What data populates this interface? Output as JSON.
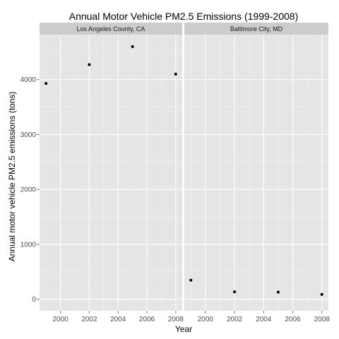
{
  "chart_data": {
    "type": "scatter",
    "title": "Annual Motor Vehicle PM2.5 Emissions (1999-2008)",
    "xlabel": "Year",
    "ylabel": "Annual motor vehicle PM2.5 emissions (tons)",
    "xlim": [
      1998.55,
      2008.45
    ],
    "ylim": [
      -210,
      4820
    ],
    "xticks": [
      2000,
      2002,
      2004,
      2006,
      2008
    ],
    "yticks": [
      0,
      1000,
      2000,
      3000,
      4000
    ],
    "grid": true,
    "legend": "none",
    "point_color": "#000000",
    "panel_background": "#e5e5e5",
    "strip_background": "#cccccc",
    "facets": [
      {
        "label": "Los Angeles County, CA",
        "points": [
          {
            "x": 1999,
            "y": 3931
          },
          {
            "x": 2002,
            "y": 4274
          },
          {
            "x": 2005,
            "y": 4601
          },
          {
            "x": 2008,
            "y": 4101
          }
        ]
      },
      {
        "label": "Baltimore City, MD",
        "points": [
          {
            "x": 1999,
            "y": 347
          },
          {
            "x": 2002,
            "y": 134
          },
          {
            "x": 2005,
            "y": 130
          },
          {
            "x": 2008,
            "y": 88
          }
        ]
      }
    ]
  }
}
